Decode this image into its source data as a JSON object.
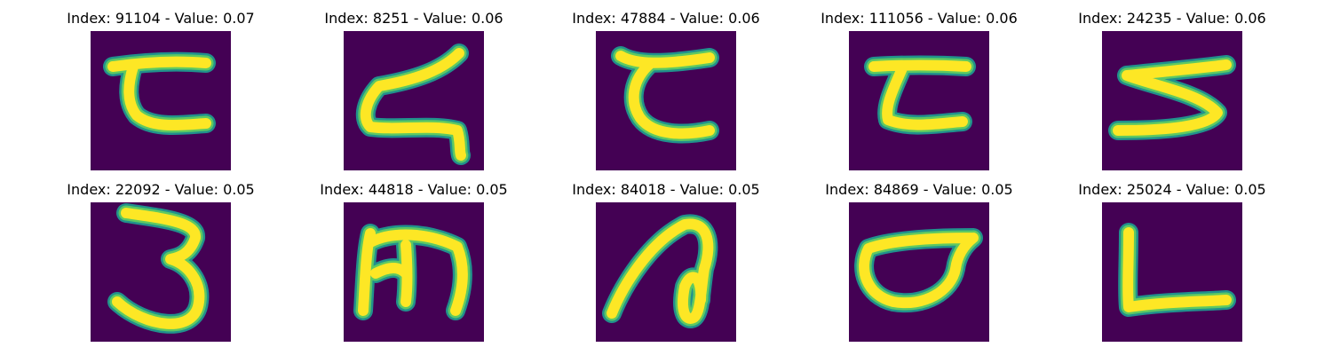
{
  "colors": {
    "background": "#440154",
    "stroke_outer": "#21918c",
    "stroke_mid": "#5ec962",
    "stroke_core": "#fde725"
  },
  "panels": [
    {
      "title": "Index: 91104 - Value: 0.07",
      "glyph": "glyph-1"
    },
    {
      "title": "Index: 8251 - Value: 0.06",
      "glyph": "glyph-2"
    },
    {
      "title": "Index: 47884 - Value: 0.06",
      "glyph": "glyph-3"
    },
    {
      "title": "Index: 111056 - Value: 0.06",
      "glyph": "glyph-4"
    },
    {
      "title": "Index: 24235 - Value: 0.06",
      "glyph": "glyph-5"
    },
    {
      "title": "Index: 22092 - Value: 0.05",
      "glyph": "glyph-6"
    },
    {
      "title": "Index: 44818 - Value: 0.05",
      "glyph": "glyph-7"
    },
    {
      "title": "Index: 84018 - Value: 0.05",
      "glyph": "glyph-8"
    },
    {
      "title": "Index: 84869 - Value: 0.05",
      "glyph": "glyph-9"
    },
    {
      "title": "Index: 25024 - Value: 0.05",
      "glyph": "glyph-10"
    }
  ]
}
